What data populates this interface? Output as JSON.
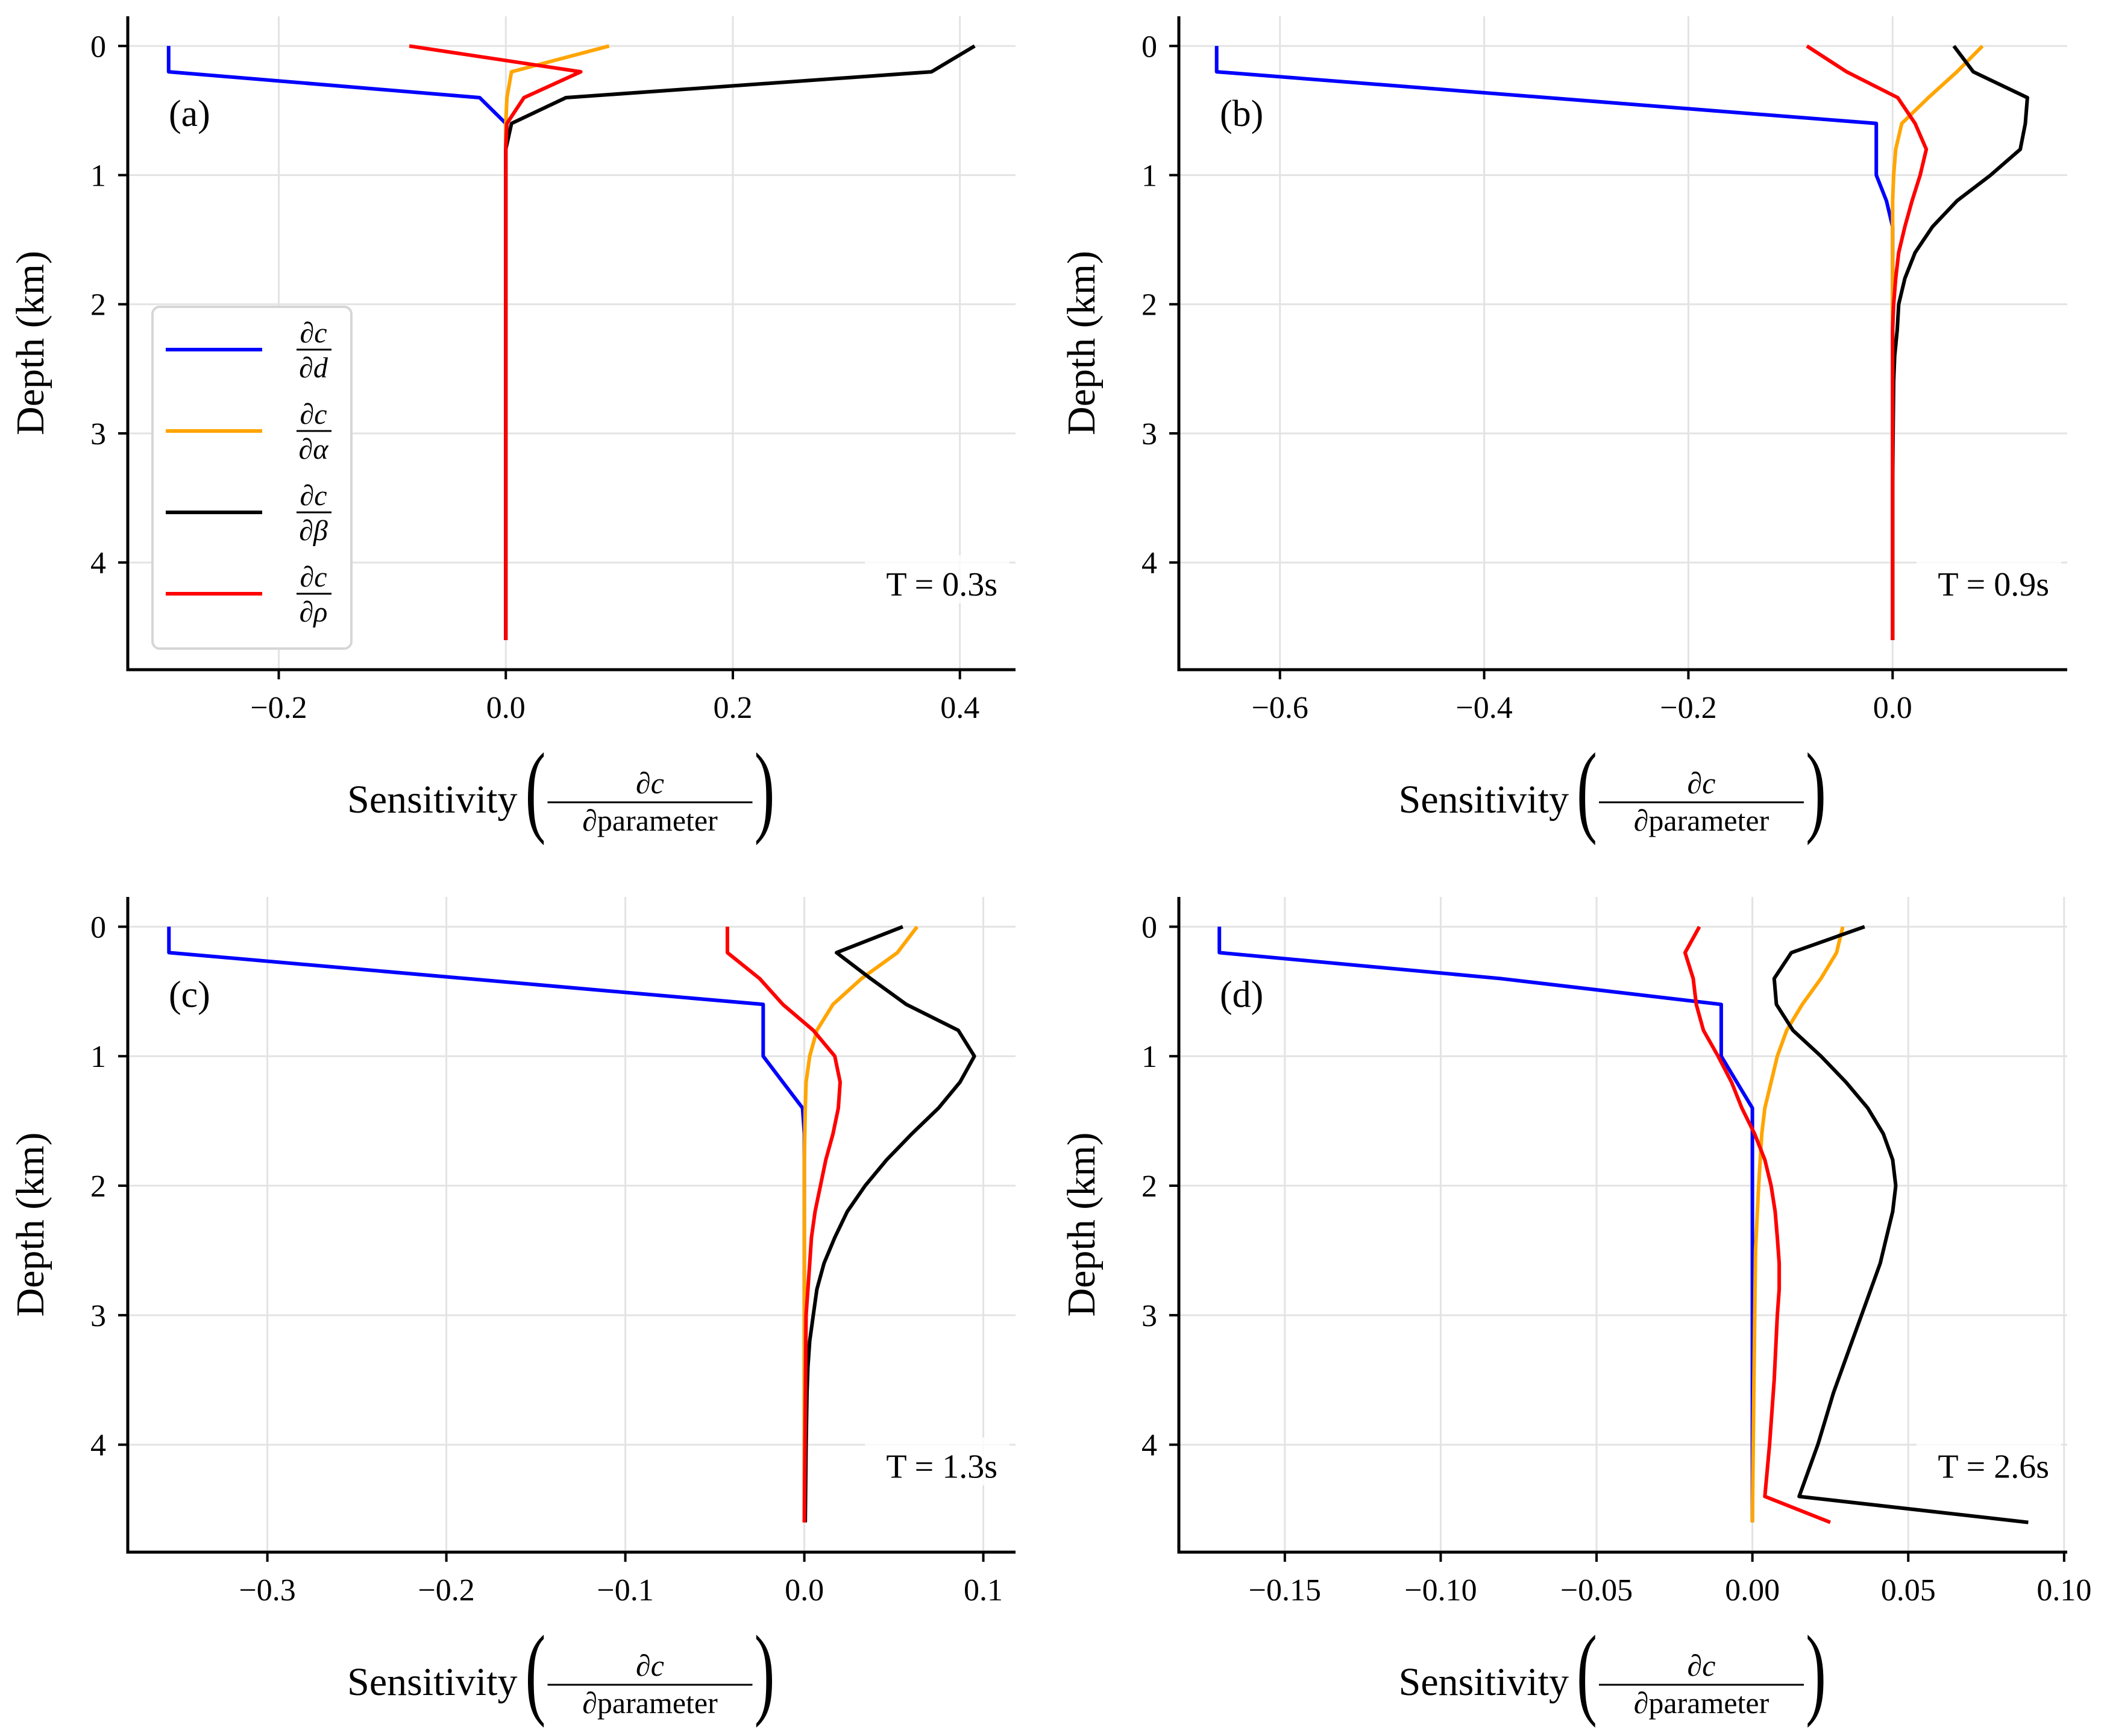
{
  "figure": {
    "legend": [
      {
        "numerator": "∂c",
        "denominator": "∂d",
        "color": "#0000ff"
      },
      {
        "numerator": "∂c",
        "denominator": "∂α",
        "color": "#ffa500"
      },
      {
        "numerator": "∂c",
        "denominator": "∂β",
        "color": "#000000"
      },
      {
        "numerator": "∂c",
        "denominator": "∂ρ",
        "color": "#ff0000"
      }
    ],
    "legend_placement": "center-left of panel (a)"
  },
  "chart_data": [
    {
      "type": "line",
      "panel_label": "(a)",
      "annotation": "T = 0.3s",
      "ylabel": "Depth (km)",
      "xlabel": {
        "text": "Sensitivity",
        "numerator": "∂c",
        "denominator": "∂parameter"
      },
      "xlim": [
        -0.333,
        0.449
      ],
      "ylim": [
        4.83,
        -0.23
      ],
      "y_inverted": true,
      "grid": true,
      "xticks": [
        -0.2,
        0.0,
        0.2,
        0.4
      ],
      "xtick_labels": [
        "−0.2",
        "0.0",
        "0.2",
        "0.4"
      ],
      "yticks": [
        0,
        1,
        2,
        3,
        4
      ],
      "ytick_labels": [
        "0",
        "1",
        "2",
        "3",
        "4"
      ],
      "series": [
        {
          "color": "#0000ff",
          "points": [
            [
              -0.297,
              0
            ],
            [
              -0.297,
              0.2
            ],
            [
              -0.023,
              0.4
            ],
            [
              0,
              0.6
            ],
            [
              0,
              4.6
            ]
          ]
        },
        {
          "color": "#ffa500",
          "points": [
            [
              0.091,
              0
            ],
            [
              0.005,
              0.2
            ],
            [
              0.001,
              0.4
            ],
            [
              0,
              0.6
            ],
            [
              0,
              4.6
            ]
          ]
        },
        {
          "color": "#000000",
          "points": [
            [
              0.413,
              0
            ],
            [
              0.375,
              0.2
            ],
            [
              0.053,
              0.4
            ],
            [
              0.005,
              0.6
            ],
            [
              0,
              0.8
            ],
            [
              0,
              4.6
            ]
          ]
        },
        {
          "color": "#ff0000",
          "points": [
            [
              -0.085,
              0
            ],
            [
              0.066,
              0.2
            ],
            [
              0.016,
              0.4
            ],
            [
              0.001,
              0.6
            ],
            [
              0,
              0.8
            ],
            [
              0,
              4.6
            ]
          ]
        }
      ]
    },
    {
      "type": "line",
      "panel_label": "(b)",
      "annotation": "T = 0.9s",
      "ylabel": "Depth (km)",
      "xlabel": {
        "text": "Sensitivity",
        "numerator": "∂c",
        "denominator": "∂parameter"
      },
      "xlim": [
        -0.699,
        0.171
      ],
      "ylim": [
        4.83,
        -0.23
      ],
      "y_inverted": true,
      "grid": true,
      "xticks": [
        -0.6,
        -0.4,
        -0.2,
        0.0
      ],
      "xtick_labels": [
        "−0.6",
        "−0.4",
        "−0.2",
        "0.0"
      ],
      "yticks": [
        0,
        1,
        2,
        3,
        4
      ],
      "ytick_labels": [
        "0",
        "1",
        "2",
        "3",
        "4"
      ],
      "series": [
        {
          "color": "#0000ff",
          "points": [
            [
              -0.662,
              0
            ],
            [
              -0.662,
              0.2
            ],
            [
              -0.016,
              0.6
            ],
            [
              -0.016,
              1.0
            ],
            [
              -0.006,
              1.2
            ],
            [
              0,
              1.4
            ],
            [
              0,
              4.6
            ]
          ]
        },
        {
          "color": "#ffa500",
          "points": [
            [
              0.088,
              0
            ],
            [
              0.063,
              0.2
            ],
            [
              0.035,
              0.4
            ],
            [
              0.009,
              0.6
            ],
            [
              0.003,
              0.8
            ],
            [
              0.001,
              1.0
            ],
            [
              0,
              1.2
            ],
            [
              0,
              4.6
            ]
          ]
        },
        {
          "color": "#000000",
          "points": [
            [
              0.06,
              0
            ],
            [
              0.079,
              0.2
            ],
            [
              0.132,
              0.4
            ],
            [
              0.13,
              0.6
            ],
            [
              0.125,
              0.8
            ],
            [
              0.096,
              1.0
            ],
            [
              0.063,
              1.2
            ],
            [
              0.039,
              1.4
            ],
            [
              0.022,
              1.6
            ],
            [
              0.012,
              1.8
            ],
            [
              0.006,
              2.0
            ],
            [
              0.0045,
              2.2
            ],
            [
              0.002,
              2.4
            ],
            [
              0.001,
              2.6
            ],
            [
              0.0005,
              3.0
            ],
            [
              0,
              3.4
            ],
            [
              0,
              4.6
            ]
          ]
        },
        {
          "color": "#ff0000",
          "points": [
            [
              -0.084,
              0
            ],
            [
              -0.045,
              0.2
            ],
            [
              0.005,
              0.4
            ],
            [
              0.022,
              0.6
            ],
            [
              0.033,
              0.8
            ],
            [
              0.027,
              1.0
            ],
            [
              0.019,
              1.2
            ],
            [
              0.012,
              1.4
            ],
            [
              0.006,
              1.6
            ],
            [
              0.003,
              1.8
            ],
            [
              0.001,
              2.0
            ],
            [
              0,
              2.2
            ],
            [
              0,
              4.6
            ]
          ]
        }
      ]
    },
    {
      "type": "line",
      "panel_label": "(c)",
      "annotation": "T = 1.3s",
      "ylabel": "Depth (km)",
      "xlabel": {
        "text": "Sensitivity",
        "numerator": "∂c",
        "denominator": "∂parameter"
      },
      "xlim": [
        -0.378,
        0.118
      ],
      "ylim": [
        4.83,
        -0.23
      ],
      "y_inverted": true,
      "grid": true,
      "xticks": [
        -0.3,
        -0.2,
        -0.1,
        0.0,
        0.1
      ],
      "xtick_labels": [
        "−0.3",
        "−0.2",
        "−0.1",
        "0.0",
        "0.1"
      ],
      "yticks": [
        0,
        1,
        2,
        3,
        4
      ],
      "ytick_labels": [
        "0",
        "1",
        "2",
        "3",
        "4"
      ],
      "series": [
        {
          "color": "#0000ff",
          "points": [
            [
              -0.355,
              0
            ],
            [
              -0.355,
              0.2
            ],
            [
              -0.023,
              0.6
            ],
            [
              -0.023,
              1.0
            ],
            [
              -0.012,
              1.2
            ],
            [
              -0.001,
              1.4
            ],
            [
              0,
              1.6
            ],
            [
              0,
              4.6
            ]
          ]
        },
        {
          "color": "#ffa500",
          "points": [
            [
              0.063,
              0
            ],
            [
              0.052,
              0.2
            ],
            [
              0.032,
              0.4
            ],
            [
              0.016,
              0.6
            ],
            [
              0.007,
              0.8
            ],
            [
              0.003,
              1.0
            ],
            [
              0.001,
              1.2
            ],
            [
              0.0005,
              1.4
            ],
            [
              0,
              1.8
            ],
            [
              0,
              4.6
            ]
          ]
        },
        {
          "color": "#000000",
          "points": [
            [
              0.055,
              0
            ],
            [
              0.018,
              0.2
            ],
            [
              0.037,
              0.4
            ],
            [
              0.057,
              0.6
            ],
            [
              0.086,
              0.8
            ],
            [
              0.095,
              1.0
            ],
            [
              0.087,
              1.2
            ],
            [
              0.075,
              1.4
            ],
            [
              0.06,
              1.6
            ],
            [
              0.046,
              1.8
            ],
            [
              0.034,
              2.0
            ],
            [
              0.024,
              2.2
            ],
            [
              0.017,
              2.4
            ],
            [
              0.011,
              2.6
            ],
            [
              0.007,
              2.8
            ],
            [
              0.005,
              3.0
            ],
            [
              0.003,
              3.2
            ],
            [
              0.002,
              3.4
            ],
            [
              0.0015,
              3.6
            ],
            [
              0.001,
              4.0
            ],
            [
              0.0005,
              4.6
            ]
          ]
        },
        {
          "color": "#ff0000",
          "points": [
            [
              -0.043,
              0
            ],
            [
              -0.043,
              0.2
            ],
            [
              -0.025,
              0.4
            ],
            [
              -0.012,
              0.6
            ],
            [
              0.005,
              0.8
            ],
            [
              0.017,
              1.0
            ],
            [
              0.02,
              1.2
            ],
            [
              0.019,
              1.4
            ],
            [
              0.016,
              1.6
            ],
            [
              0.012,
              1.8
            ],
            [
              0.009,
              2.0
            ],
            [
              0.006,
              2.2
            ],
            [
              0.004,
              2.4
            ],
            [
              0.003,
              2.6
            ],
            [
              0.002,
              2.8
            ],
            [
              0.001,
              3.0
            ],
            [
              0,
              4.6
            ]
          ]
        }
      ]
    },
    {
      "type": "line",
      "panel_label": "(d)",
      "annotation": "T = 2.6s",
      "ylabel": "Depth (km)",
      "xlabel": {
        "text": "Sensitivity",
        "numerator": "∂c",
        "denominator": "∂parameter"
      },
      "xlim": [
        -0.184,
        0.101
      ],
      "ylim": [
        4.83,
        -0.23
      ],
      "y_inverted": true,
      "grid": true,
      "xticks": [
        -0.15,
        -0.1,
        -0.05,
        0.0,
        0.05,
        0.1
      ],
      "xtick_labels": [
        "−0.15",
        "−0.10",
        "−0.05",
        "0.00",
        "0.05",
        "0.10"
      ],
      "yticks": [
        0,
        1,
        2,
        3,
        4
      ],
      "ytick_labels": [
        "0",
        "1",
        "2",
        "3",
        "4"
      ],
      "series": [
        {
          "color": "#0000ff",
          "points": [
            [
              -0.171,
              0
            ],
            [
              -0.171,
              0.2
            ],
            [
              -0.081,
              0.4
            ],
            [
              -0.01,
              0.6
            ],
            [
              -0.01,
              1.0
            ],
            [
              0,
              1.4
            ],
            [
              0,
              4.6
            ]
          ]
        },
        {
          "color": "#ffa500",
          "points": [
            [
              0.029,
              0
            ],
            [
              0.027,
              0.2
            ],
            [
              0.022,
              0.4
            ],
            [
              0.016,
              0.6
            ],
            [
              0.011,
              0.8
            ],
            [
              0.008,
              1.0
            ],
            [
              0.006,
              1.2
            ],
            [
              0.004,
              1.4
            ],
            [
              0.003,
              1.6
            ],
            [
              0.002,
              2.0
            ],
            [
              0.001,
              2.5
            ],
            [
              0.0005,
              3.5
            ],
            [
              0,
              4.6
            ]
          ]
        },
        {
          "color": "#000000",
          "points": [
            [
              0.036,
              0
            ],
            [
              0.0125,
              0.2
            ],
            [
              0.007,
              0.4
            ],
            [
              0.0077,
              0.6
            ],
            [
              0.013,
              0.8
            ],
            [
              0.022,
              1.0
            ],
            [
              0.03,
              1.2
            ],
            [
              0.037,
              1.4
            ],
            [
              0.042,
              1.6
            ],
            [
              0.045,
              1.8
            ],
            [
              0.046,
              2.0
            ],
            [
              0.045,
              2.2
            ],
            [
              0.043,
              2.4
            ],
            [
              0.041,
              2.6
            ],
            [
              0.038,
              2.8
            ],
            [
              0.035,
              3.0
            ],
            [
              0.032,
              3.2
            ],
            [
              0.029,
              3.4
            ],
            [
              0.026,
              3.6
            ],
            [
              0.0235,
              3.8
            ],
            [
              0.021,
              4.0
            ],
            [
              0.018,
              4.2
            ],
            [
              0.015,
              4.4
            ],
            [
              0.0885,
              4.6
            ]
          ]
        },
        {
          "color": "#ff0000",
          "points": [
            [
              -0.017,
              0
            ],
            [
              -0.0216,
              0.2
            ],
            [
              -0.019,
              0.4
            ],
            [
              -0.018,
              0.6
            ],
            [
              -0.0157,
              0.8
            ],
            [
              -0.011,
              1.0
            ],
            [
              -0.0067,
              1.2
            ],
            [
              -0.0034,
              1.4
            ],
            [
              0.0007,
              1.6
            ],
            [
              0.004,
              1.8
            ],
            [
              0.006,
              2.0
            ],
            [
              0.0073,
              2.2
            ],
            [
              0.008,
              2.4
            ],
            [
              0.0086,
              2.6
            ],
            [
              0.0086,
              2.8
            ],
            [
              0.008,
              3.0
            ],
            [
              0.007,
              3.5
            ],
            [
              0.0055,
              4.0
            ],
            [
              0.004,
              4.4
            ],
            [
              0.025,
              4.6
            ]
          ]
        }
      ]
    }
  ]
}
